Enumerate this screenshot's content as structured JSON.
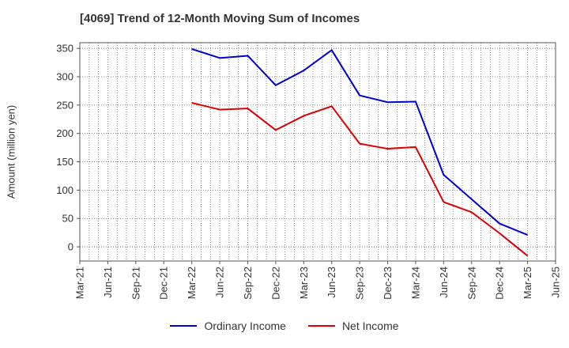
{
  "chart_data": {
    "type": "line",
    "title": "[4069]  Trend of 12-Month Moving Sum of Incomes",
    "ylabel": "Amount (million yen)",
    "xlabel": "",
    "ylim": [
      -25,
      360
    ],
    "yticks": [
      0,
      50,
      100,
      150,
      200,
      250,
      300,
      350
    ],
    "categories": [
      "Mar-21",
      "Jun-21",
      "Sep-21",
      "Dec-21",
      "Mar-22",
      "Jun-22",
      "Sep-22",
      "Dec-22",
      "Mar-23",
      "Jun-23",
      "Sep-23",
      "Dec-23",
      "Mar-24",
      "Jun-24",
      "Sep-24",
      "Dec-24",
      "Mar-25",
      "Jun-25"
    ],
    "grid": true,
    "legend_position": "bottom",
    "series": [
      {
        "name": "Ordinary Income",
        "color": "#0000cc",
        "values": [
          null,
          null,
          null,
          null,
          349,
          333,
          337,
          285,
          311,
          347,
          267,
          255,
          256,
          127,
          84,
          41,
          21,
          null
        ]
      },
      {
        "name": "Net Income",
        "color": "#dd0000",
        "values": [
          null,
          null,
          null,
          null,
          254,
          242,
          244,
          206,
          231,
          248,
          182,
          173,
          176,
          79,
          61,
          24,
          -16,
          null
        ]
      }
    ]
  }
}
